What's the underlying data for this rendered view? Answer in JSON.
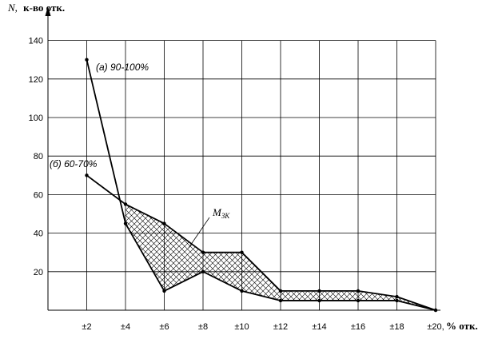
{
  "chart_data": {
    "type": "line",
    "ylabel_var": "N,",
    "ylabel_text": "к-во отк.",
    "xlabel": "% отк.",
    "categories": [
      "±2",
      "±4",
      "±6",
      "±8",
      "±10",
      "±12",
      "±14",
      "±16",
      "±18",
      "±20,"
    ],
    "y_ticks": [
      20,
      40,
      60,
      80,
      100,
      120,
      140
    ],
    "ylim": [
      0,
      140
    ],
    "grid": true,
    "series": [
      {
        "name": "(а) 90-100%",
        "values": [
          130,
          45,
          10,
          20,
          10,
          5,
          5,
          5,
          5,
          0
        ]
      },
      {
        "name": "(б) 60-70%",
        "values": [
          70,
          55,
          45,
          30,
          30,
          10,
          10,
          10,
          7,
          0
        ]
      }
    ],
    "annotations": [
      {
        "var": "М",
        "sub": "ЗК"
      }
    ]
  }
}
